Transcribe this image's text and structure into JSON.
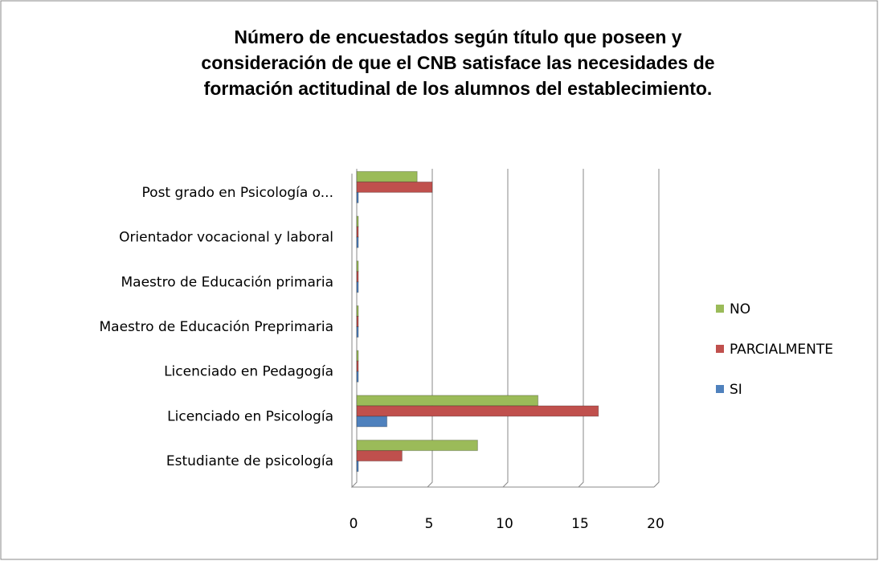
{
  "chart_data": {
    "type": "bar",
    "orientation": "horizontal",
    "title": [
      "Número de encuestados según título que poseen y",
      "consideración de que el CNB satisface las necesidades de",
      "formación actitudinal de los alumnos del establecimiento."
    ],
    "categories": [
      "Estudiante de psicología",
      "Licenciado en Psicología",
      "Licenciado en Pedagogía",
      "Maestro de Educación Preprimaria",
      "Maestro de Educación primaria",
      "Orientador vocacional y laboral",
      "Post grado en Psicología o..."
    ],
    "series": [
      {
        "name": "NO",
        "color": "#9bbb59",
        "values": [
          8,
          12,
          0,
          0,
          0,
          0,
          4
        ]
      },
      {
        "name": "PARCIALMENTE",
        "color": "#c0504d",
        "values": [
          3,
          16,
          0,
          0,
          0,
          0,
          5
        ]
      },
      {
        "name": "SI",
        "color": "#4f81bd",
        "values": [
          0,
          2,
          0,
          0,
          0,
          0,
          0
        ]
      }
    ],
    "xlim": [
      0,
      20
    ],
    "xticks": [
      0,
      5,
      10,
      15,
      20
    ],
    "grid": true,
    "legend": "right"
  }
}
